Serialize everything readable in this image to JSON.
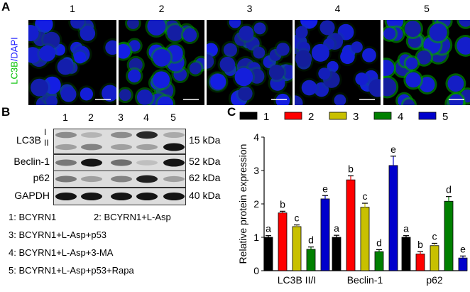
{
  "panel_a": {
    "label": "A",
    "y_label_green": "LC3B",
    "y_label_blue": "/DAPI",
    "columns": [
      "1",
      "2",
      "3",
      "4",
      "5"
    ],
    "green_intensity": [
      0.15,
      0.45,
      0.2,
      0.1,
      0.6
    ]
  },
  "panel_b": {
    "label": "B",
    "lanes": [
      "1",
      "2",
      "3",
      "4",
      "5"
    ],
    "rows": [
      {
        "name": "LC3B",
        "sub": [
          "I",
          "II"
        ],
        "kda": "15 kDa"
      },
      {
        "name": "Beclin-1",
        "kda": "52 kDa"
      },
      {
        "name": "p62",
        "kda": "62 kDa"
      },
      {
        "name": "GAPDH",
        "kda": "40 kDa"
      }
    ],
    "legend": [
      "1: BCYRN1",
      "2: BCYRN1+L-Asp",
      "3: BCYRN1+L-Asp+p53",
      "4: BCYRN1+L-Asp+3-MA",
      "5: BCYRN1+L-Asp+p53+Rapa"
    ]
  },
  "chart_data": {
    "panel_label": "C",
    "type": "bar",
    "categories": [
      "LC3B II/I",
      "Beclin-1",
      "p62"
    ],
    "ylabel": "Relative protein expression",
    "xlabel": "",
    "ylim": [
      0,
      4
    ],
    "yticks": [
      "0",
      "1",
      "2",
      "3",
      "4"
    ],
    "legend_position": "top",
    "grid": false,
    "series": [
      {
        "name": "1",
        "color": "#000000",
        "values": [
          1.0,
          1.0,
          1.0
        ],
        "errors": [
          0.05,
          0.06,
          0.05
        ],
        "letters": [
          "a",
          "a",
          "a"
        ]
      },
      {
        "name": "2",
        "color": "#ff0000",
        "values": [
          1.73,
          2.72,
          0.5
        ],
        "errors": [
          0.05,
          0.12,
          0.07
        ],
        "letters": [
          "b",
          "b",
          "b"
        ]
      },
      {
        "name": "3",
        "color": "#c8c000",
        "values": [
          1.32,
          1.9,
          0.75
        ],
        "errors": [
          0.05,
          0.12,
          0.07
        ],
        "letters": [
          "c",
          "c",
          "c"
        ]
      },
      {
        "name": "4",
        "color": "#008000",
        "values": [
          0.64,
          0.57,
          2.08
        ],
        "errors": [
          0.07,
          0.06,
          0.14
        ],
        "letters": [
          "d",
          "d",
          "d"
        ]
      },
      {
        "name": "5",
        "color": "#0000cc",
        "values": [
          2.15,
          3.15,
          0.38
        ],
        "errors": [
          0.1,
          0.28,
          0.06
        ],
        "letters": [
          "e",
          "e",
          "e"
        ]
      }
    ]
  }
}
